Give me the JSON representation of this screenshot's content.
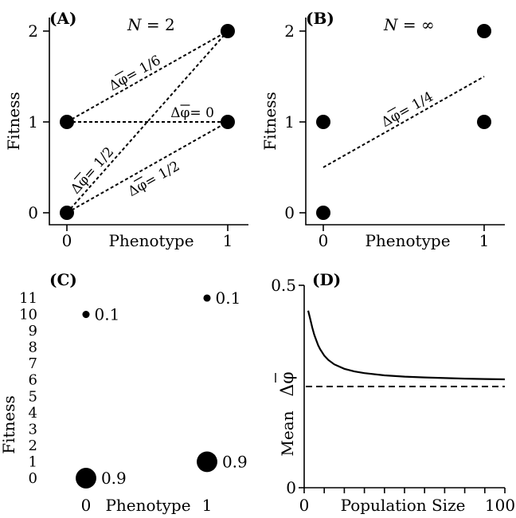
{
  "chart_data": [
    {
      "type": "scatter",
      "panel_label": "(A)",
      "title_var": "N",
      "title_value": "= 2",
      "xlabel": "Phenotype",
      "ylabel": "Fitness",
      "xlim": [
        0,
        1
      ],
      "ylim": [
        0,
        2
      ],
      "x_ticks": [
        "0",
        "1"
      ],
      "y_ticks": [
        "0",
        "1",
        "2"
      ],
      "points": [
        {
          "x": 0,
          "y": 0
        },
        {
          "x": 0,
          "y": 1
        },
        {
          "x": 1,
          "y": 1
        },
        {
          "x": 1,
          "y": 2
        }
      ],
      "lines": [
        {
          "x1": 0,
          "y1": 1,
          "x2": 1,
          "y2": 2,
          "label": "Δφ = 1/6"
        },
        {
          "x1": 0,
          "y1": 1,
          "x2": 1,
          "y2": 1,
          "label": "Δφ = 0"
        },
        {
          "x1": 0,
          "y1": 0,
          "x2": 1,
          "y2": 2,
          "label": "Δφ = 1/2"
        },
        {
          "x1": 0,
          "y1": 0,
          "x2": 1,
          "y2": 1,
          "label": "Δφ = 1/2"
        }
      ]
    },
    {
      "type": "scatter",
      "panel_label": "(B)",
      "title_var": "N",
      "title_value": "= ∞",
      "xlabel": "Phenotype",
      "ylabel": "Fitness",
      "xlim": [
        0,
        1
      ],
      "ylim": [
        0,
        2
      ],
      "x_ticks": [
        "0",
        "1"
      ],
      "y_ticks": [
        "0",
        "1",
        "2"
      ],
      "points": [
        {
          "x": 0,
          "y": 0
        },
        {
          "x": 0,
          "y": 1
        },
        {
          "x": 1,
          "y": 1
        },
        {
          "x": 1,
          "y": 2
        }
      ],
      "lines": [
        {
          "x1": 0,
          "y1": 0.5,
          "x2": 1,
          "y2": 1.5,
          "label": "Δφ = 1/4"
        }
      ]
    },
    {
      "type": "scatter",
      "panel_label": "(C)",
      "xlabel": "Phenotype",
      "ylabel": "Fitness",
      "xlim": [
        0,
        1
      ],
      "ylim": [
        0,
        11
      ],
      "x_ticks": [
        "0",
        "1"
      ],
      "y_ticks": [
        "0",
        "1",
        "2",
        "3",
        "4",
        "5",
        "6",
        "7",
        "8",
        "9",
        "10",
        "11"
      ],
      "points": [
        {
          "x": 0,
          "y": 10,
          "prob": 0.1,
          "label": "0.1"
        },
        {
          "x": 0,
          "y": 0,
          "prob": 0.9,
          "label": "0.9"
        },
        {
          "x": 1,
          "y": 11,
          "prob": 0.1,
          "label": "0.1"
        },
        {
          "x": 1,
          "y": 1,
          "prob": 0.9,
          "label": "0.9"
        }
      ]
    },
    {
      "type": "line",
      "panel_label": "(D)",
      "xlabel": "Population Size",
      "ylabel_prefix": "Mean",
      "ylabel_symbol": "Δφ",
      "xlim": [
        0,
        100
      ],
      "ylim": [
        0,
        0.5
      ],
      "x_ticks": [
        "0",
        "100"
      ],
      "y_ticks": [
        "0",
        "0.5"
      ],
      "x_tick_count": 11,
      "reference_line": {
        "y": 0.25,
        "style": "dashed"
      },
      "series": [
        {
          "style": "solid",
          "x": [
            2,
            3,
            4,
            5,
            6,
            7,
            8,
            10,
            12,
            15,
            20,
            25,
            30,
            40,
            50,
            60,
            70,
            80,
            90,
            100
          ],
          "y": [
            0.4375,
            0.4167,
            0.3958,
            0.3781,
            0.3646,
            0.3516,
            0.3415,
            0.3264,
            0.3158,
            0.3048,
            0.2937,
            0.2872,
            0.283,
            0.2776,
            0.2745,
            0.2724,
            0.2708,
            0.2695,
            0.2686,
            0.2678
          ]
        }
      ]
    }
  ]
}
